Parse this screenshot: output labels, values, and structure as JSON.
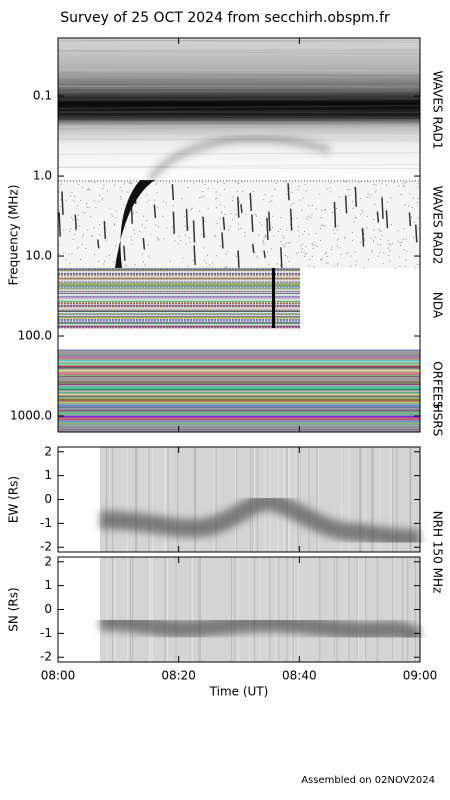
{
  "chart_data": [
    {
      "type": "spectrogram",
      "title": "Survey of 25 OCT 2024 from secchirh.obspm.fr",
      "ylabel": "Frequency (MHz)",
      "yscale": "log",
      "y_inverted": true,
      "ylim": [
        0.0188,
        1585
      ],
      "yticks": [
        {
          "value": 0.1,
          "label": "0.1"
        },
        {
          "value": 1,
          "label": "1.0"
        },
        {
          "value": 10,
          "label": "10.0"
        },
        {
          "value": 100,
          "label": "100.0"
        },
        {
          "value": 1000,
          "label": "1000.0"
        }
      ],
      "xlim": [
        "08:00",
        "09:00"
      ],
      "bands": [
        "WAVES RAD1",
        "WAVES RAD2",
        "NDA",
        "ORFEES",
        "HSRS"
      ]
    },
    {
      "type": "position",
      "ylabel": "EW (Rs)",
      "ylim": [
        -2.2,
        2.2
      ],
      "yticks": [
        -2,
        -1,
        0,
        1,
        2
      ],
      "xlim": [
        "08:00",
        "09:00"
      ],
      "annotation": "NRH 150 MHz"
    },
    {
      "type": "position",
      "ylabel": "SN (Rs)",
      "ylim": [
        -2.2,
        2.2
      ],
      "yticks": [
        -2,
        -1,
        0,
        1,
        2
      ],
      "xlim": [
        "08:00",
        "09:00"
      ],
      "xticks": [
        "08:00",
        "08:20",
        "08:40",
        "09:00"
      ],
      "xlabel": "Time (UT)"
    }
  ],
  "footer": "Assembled on 02NOV2024"
}
